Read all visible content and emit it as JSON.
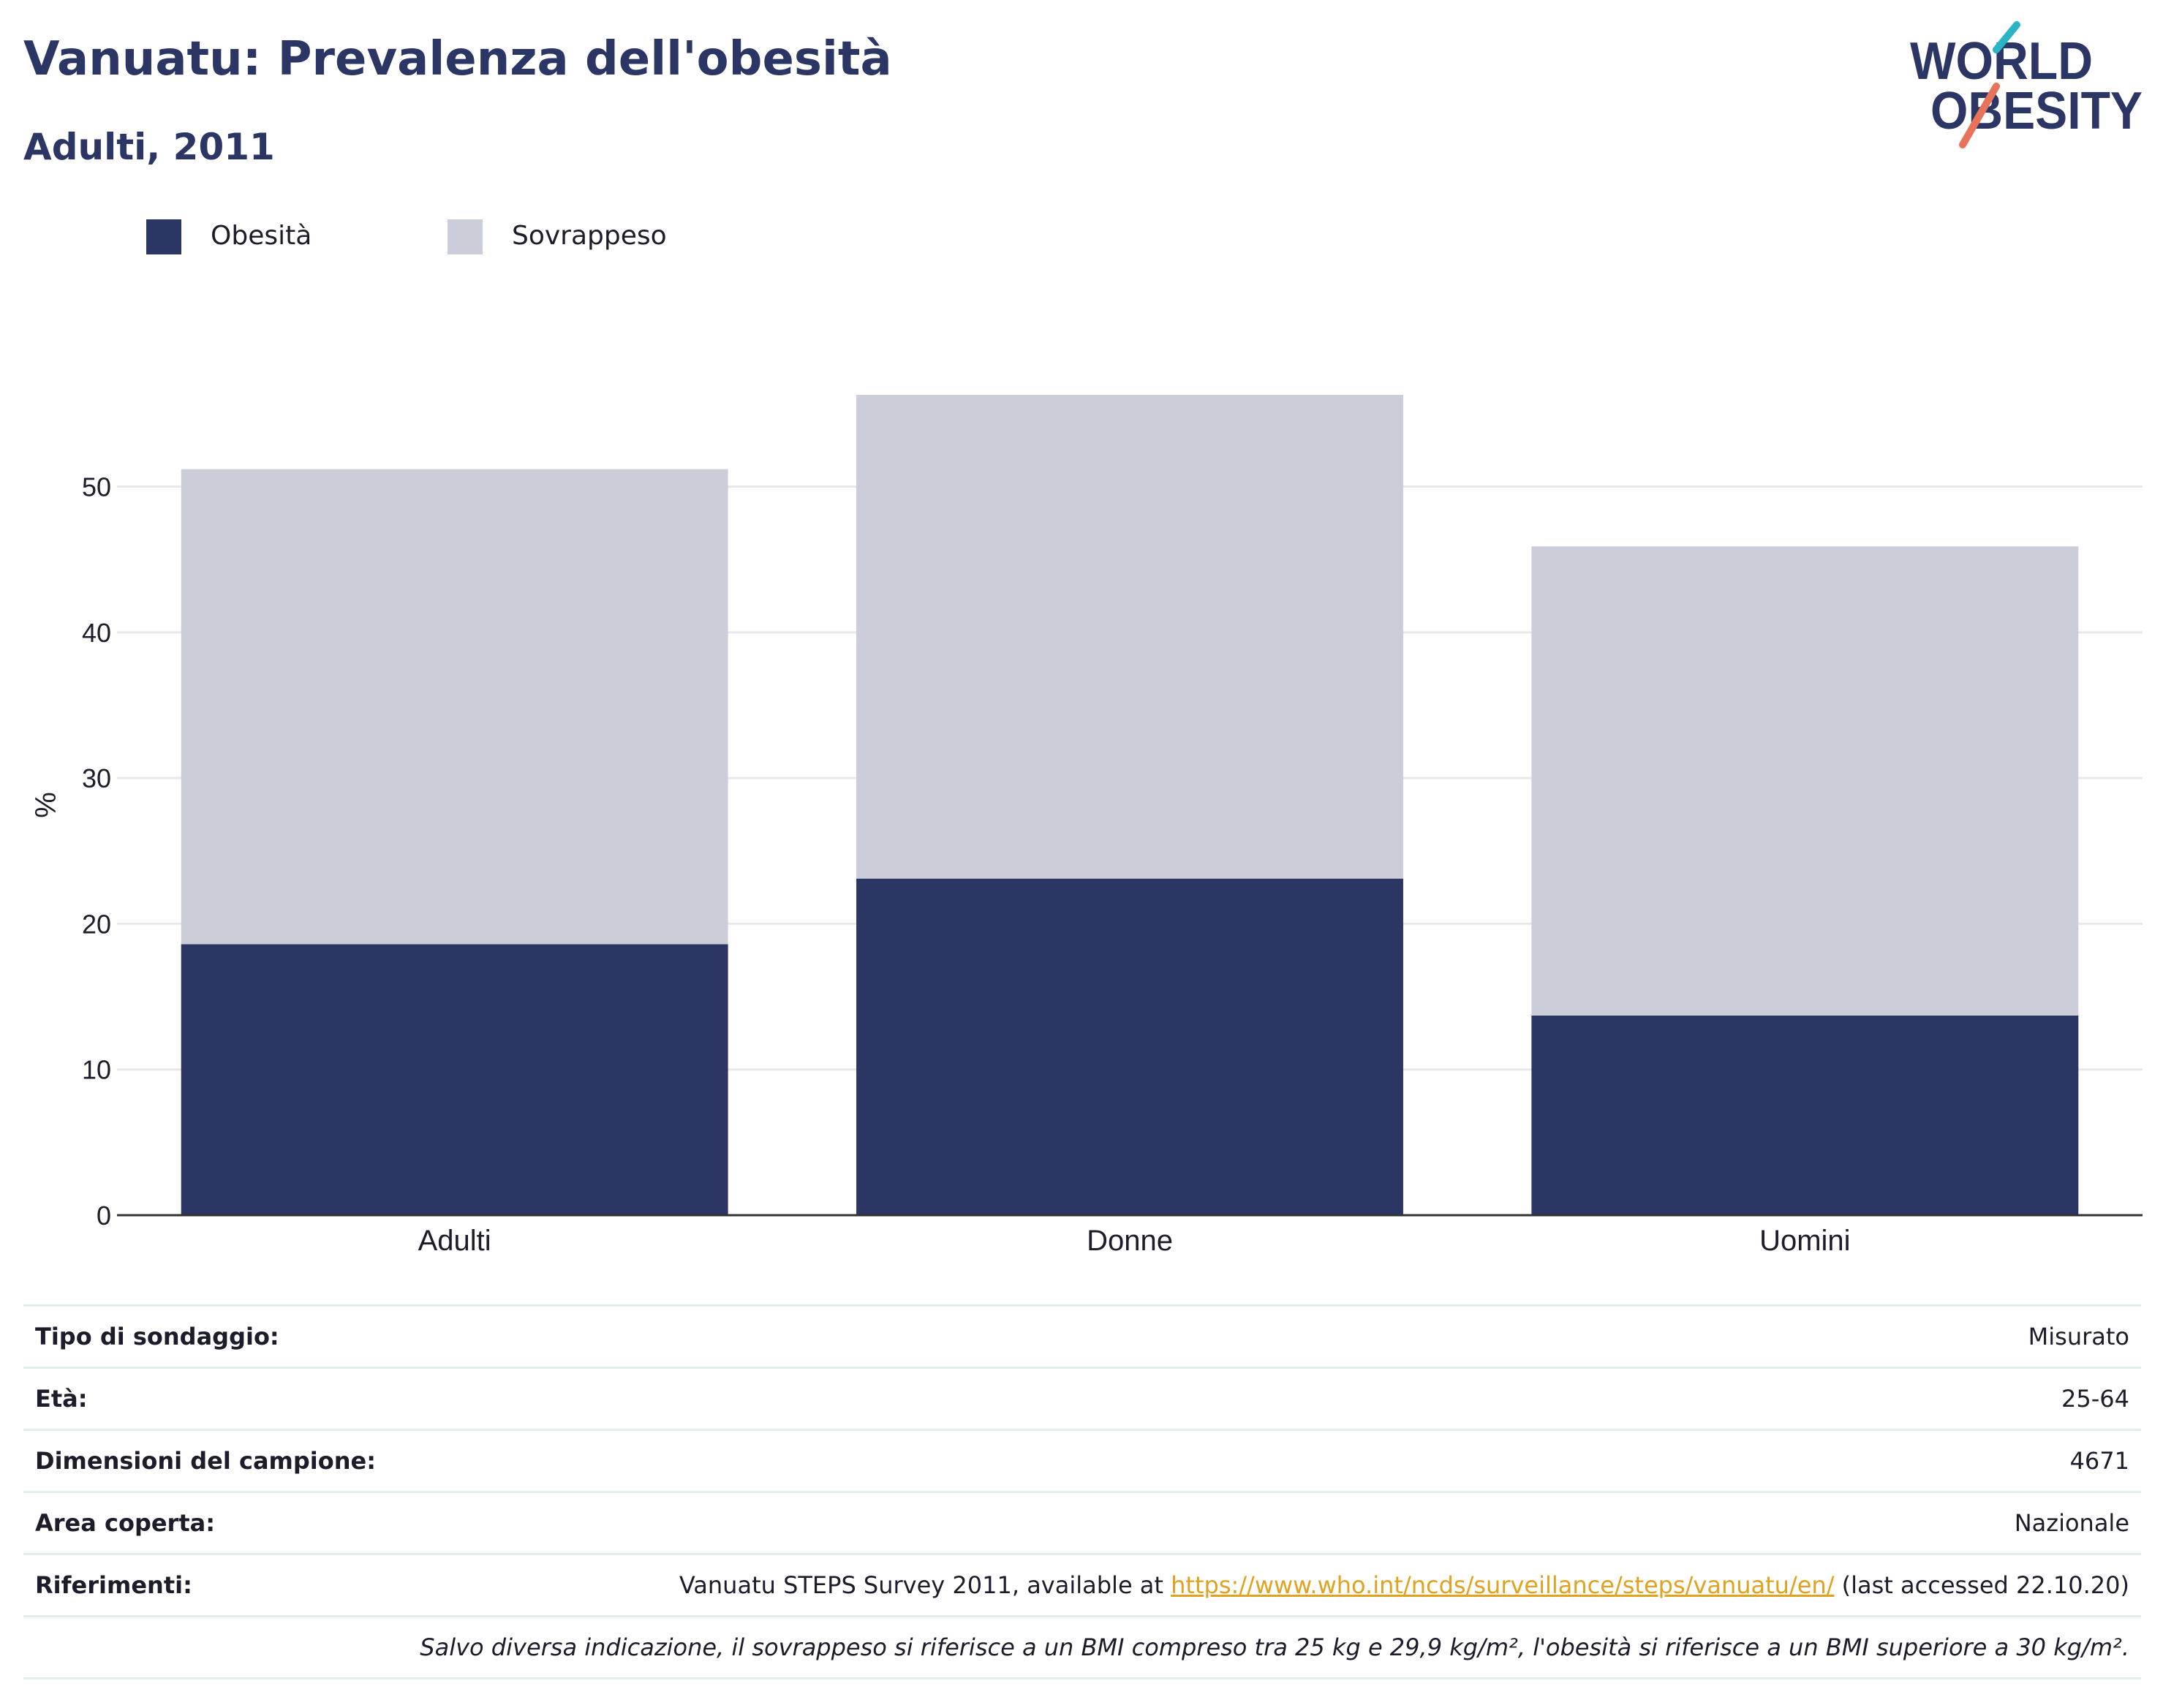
{
  "header": {
    "title": "Vanuatu: Prevalenza dell'obesità",
    "subtitle": "Adulti, 2011"
  },
  "logo": {
    "line1": "WORLD",
    "line2": "OBESITY",
    "colors": {
      "text": "#2b3664",
      "slash_top": "#2bb5c4",
      "slash_bottom": "#e8735a"
    }
  },
  "legend": {
    "items": [
      {
        "label": "Obesità",
        "color": "#2b3664"
      },
      {
        "label": "Sovrappeso",
        "color": "#cbcdd9"
      }
    ]
  },
  "chart_data": {
    "type": "bar",
    "stacked": true,
    "categories": [
      "Adulti",
      "Donne",
      "Uomini"
    ],
    "series": [
      {
        "name": "Obesità",
        "color": "#2b3664",
        "values": [
          18.6,
          23.1,
          13.7
        ]
      },
      {
        "name": "Sovrappeso",
        "color": "#cbcdd9",
        "values": [
          32.6,
          33.2,
          32.2
        ]
      }
    ],
    "ylabel": "%",
    "ylim": [
      0,
      56.3
    ],
    "yticks": [
      0,
      10,
      20,
      30,
      40,
      50
    ],
    "grid": true,
    "legend_position": "top-left"
  },
  "meta": {
    "rows": [
      {
        "label": "Tipo di sondaggio:",
        "value": "Misurato"
      },
      {
        "label": "Età:",
        "value": "25-64"
      },
      {
        "label": "Dimensioni del campione:",
        "value": "4671"
      },
      {
        "label": "Area coperta:",
        "value": "Nazionale"
      }
    ],
    "references": {
      "label": "Riferimenti:",
      "prefix": "Vanuatu STEPS Survey 2011, available at ",
      "link": "https://www.who.int/ncds/surveillance/steps/vanuatu/en/",
      "suffix": " (last accessed 22.10.20)"
    },
    "note": "Salvo diversa indicazione, il sovrappeso si riferisce a un BMI compreso tra 25 kg e 29,9 kg/m², l'obesità si riferisce a un BMI superiore a 30 kg/m²."
  }
}
